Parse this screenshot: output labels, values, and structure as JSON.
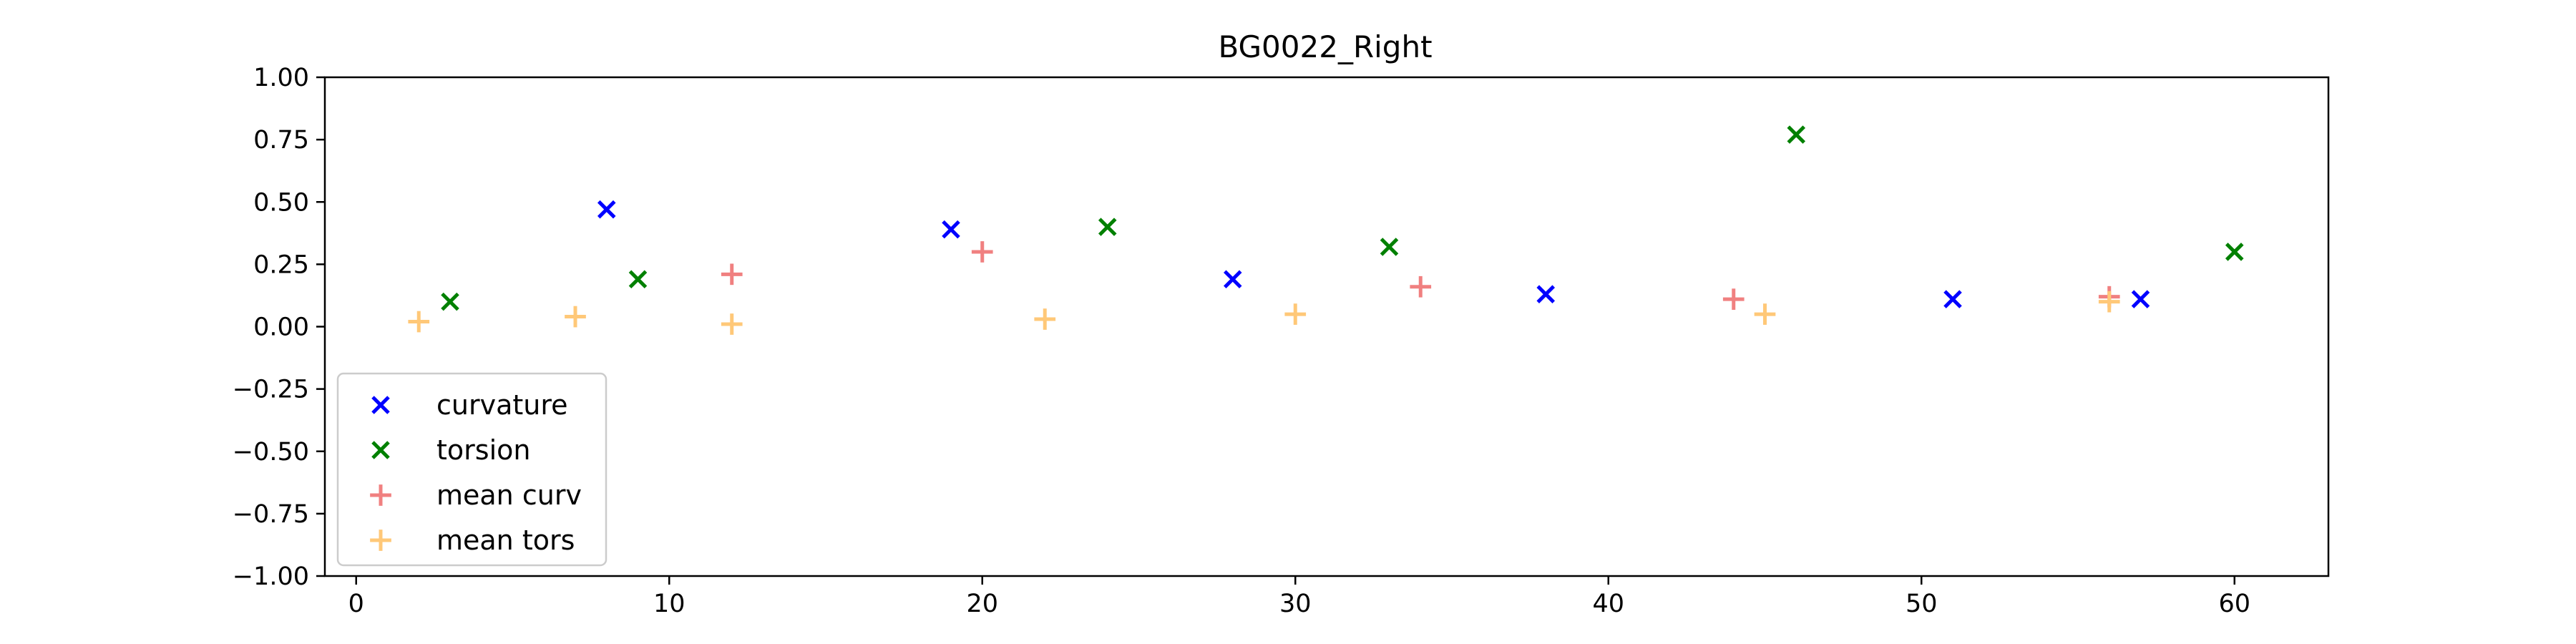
{
  "chart_data": {
    "type": "scatter",
    "title": "BG0022_Right",
    "xlabel": "",
    "ylabel": "",
    "xlim": [
      -1,
      63
    ],
    "ylim": [
      -1.0,
      1.0
    ],
    "xticks": [
      0,
      10,
      20,
      30,
      40,
      50,
      60
    ],
    "xtick_labels": [
      "0",
      "10",
      "20",
      "30",
      "40",
      "50",
      "60"
    ],
    "yticks": [
      1.0,
      0.75,
      0.5,
      0.25,
      0.0,
      -0.25,
      -0.5,
      -0.75,
      -1.0
    ],
    "ytick_labels": [
      "1.00",
      "0.75",
      "0.50",
      "0.25",
      "0.00",
      "−0.25",
      "−0.50",
      "−0.75",
      "−1.00"
    ],
    "grid": false,
    "legend_position": "lower-left",
    "series": [
      {
        "name": "curvature",
        "marker": "x",
        "color": "#0000ff",
        "x": [
          8,
          19,
          28,
          38,
          51,
          57
        ],
        "y": [
          0.47,
          0.39,
          0.19,
          0.13,
          0.11,
          0.11
        ]
      },
      {
        "name": "torsion",
        "marker": "x",
        "color": "#008000",
        "x": [
          3,
          9,
          24,
          33,
          46,
          60
        ],
        "y": [
          0.1,
          0.19,
          0.4,
          0.32,
          0.77,
          0.3
        ]
      },
      {
        "name": "mean curv",
        "marker": "+",
        "color": "#f08080",
        "x": [
          12,
          20,
          34,
          44,
          56
        ],
        "y": [
          0.21,
          0.3,
          0.16,
          0.11,
          0.12
        ]
      },
      {
        "name": "mean tors",
        "marker": "+",
        "color": "#ffc878",
        "x": [
          2,
          7,
          12,
          22,
          30,
          45,
          56
        ],
        "y": [
          0.02,
          0.04,
          0.01,
          0.03,
          0.05,
          0.05,
          0.1
        ]
      }
    ]
  }
}
